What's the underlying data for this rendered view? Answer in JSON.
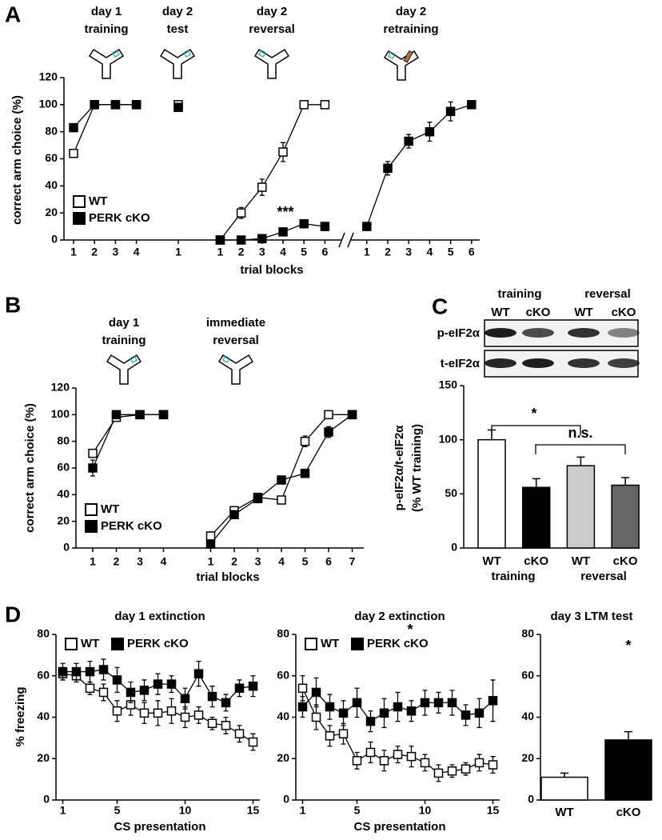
{
  "chart_data": [
    {
      "type": "line",
      "panel": "A",
      "group_labels": [
        [
          "day 1",
          "training"
        ],
        [
          "day 2",
          "test"
        ],
        [
          "day 2",
          "reversal"
        ],
        [
          "day 2",
          "retraining"
        ]
      ],
      "categories": [
        "1",
        "2",
        "3",
        "4",
        null,
        "1",
        null,
        "1",
        "2",
        "3",
        "4",
        "5",
        "6",
        null,
        "1",
        "2",
        "3",
        "4",
        "5",
        "6"
      ],
      "x_label": "trial blocks",
      "y_label": "correct arm choice (%)",
      "ylim": [
        0,
        120
      ],
      "yticks": [
        0,
        20,
        40,
        60,
        80,
        100,
        120
      ],
      "legend": "lower left",
      "series": [
        {
          "name": "WT",
          "color": "#ffffff",
          "values": [
            64,
            100,
            100,
            100,
            null,
            100,
            null,
            0,
            20,
            39,
            65,
            100,
            100,
            null,
            null,
            null,
            null,
            null,
            null,
            null
          ],
          "errors": [
            3,
            0,
            0,
            0,
            null,
            2,
            null,
            0,
            4,
            6,
            7,
            0,
            0,
            null,
            null,
            null,
            null,
            null,
            null,
            null
          ]
        },
        {
          "name": "PERK cKO",
          "color": "#000000",
          "values": [
            83,
            100,
            100,
            100,
            null,
            98,
            null,
            0,
            0,
            1,
            6,
            12,
            10,
            null,
            10,
            53,
            73,
            80,
            95,
            100
          ],
          "errors": [
            2,
            0,
            0,
            0,
            null,
            2,
            null,
            0,
            0,
            1,
            2,
            3,
            3,
            null,
            3,
            5,
            5,
            7,
            7,
            0
          ]
        }
      ],
      "annotations": [
        "***"
      ]
    },
    {
      "type": "line",
      "panel": "B",
      "group_labels": [
        [
          "day 1",
          "training"
        ],
        [
          "immediate",
          "reversal"
        ]
      ],
      "categories": [
        "1",
        "2",
        "3",
        "4",
        null,
        "1",
        "2",
        "3",
        "4",
        "5",
        "6",
        "7"
      ],
      "x_label": "trial blocks",
      "y_label": "correct arm choice (%)",
      "ylim": [
        0,
        120
      ],
      "yticks": [
        0,
        20,
        40,
        60,
        80,
        100,
        120
      ],
      "legend": "lower left",
      "series": [
        {
          "name": "WT",
          "color": "#ffffff",
          "values": [
            71,
            98,
            100,
            100,
            null,
            9,
            28,
            38,
            36,
            80,
            100,
            100
          ],
          "errors": [
            3,
            2,
            0,
            0,
            null,
            3,
            1,
            2,
            1,
            4,
            0,
            0
          ]
        },
        {
          "name": "PERK cKO",
          "color": "#000000",
          "values": [
            60,
            100,
            100,
            100,
            null,
            3,
            25,
            37,
            51,
            56,
            87,
            100
          ],
          "errors": [
            6,
            1,
            0,
            0,
            null,
            1,
            1,
            1,
            1,
            3,
            4,
            0
          ]
        }
      ]
    },
    {
      "type": "bar",
      "panel": "C",
      "blot": {
        "groups": [
          "training",
          "reversal"
        ],
        "lanes": [
          "WT",
          "cKO",
          "WT",
          "cKO"
        ],
        "rows": [
          "p-eIF2α",
          "t-eIF2α"
        ]
      },
      "categories": [
        "WT",
        "cKO",
        "WT",
        "cKO"
      ],
      "group_labels": [
        "training",
        "reversal"
      ],
      "values": [
        100,
        56,
        76,
        58
      ],
      "errors": [
        9,
        8,
        8,
        7
      ],
      "colors": [
        "#ffffff",
        "#000000",
        "#cccccc",
        "#666666"
      ],
      "y_label": [
        "p-eIF2α/t-eIF2α",
        "(% WT training)"
      ],
      "ylim": [
        0,
        150
      ],
      "yticks": [
        0,
        50,
        100,
        150
      ],
      "annotations": [
        "*",
        "n.s."
      ]
    },
    {
      "type": "line",
      "panel": "D",
      "title": "day 1 extinction",
      "x": [
        1,
        2,
        3,
        4,
        5,
        6,
        7,
        8,
        9,
        10,
        11,
        12,
        13,
        14,
        15
      ],
      "xlim": [
        0.5,
        15.5
      ],
      "xticks": [
        1,
        5,
        10,
        15
      ],
      "x_label": "CS presentation",
      "y_label": "% freezing",
      "ylim": [
        0,
        80
      ],
      "yticks": [
        0,
        20,
        40,
        60,
        80
      ],
      "legend": "upper left",
      "series": [
        {
          "name": "WT",
          "color": "#ffffff",
          "values": [
            61,
            60,
            54,
            52,
            43,
            46,
            42,
            42,
            43,
            40,
            41,
            37,
            36,
            32,
            28
          ],
          "errors": [
            3,
            3,
            3,
            4,
            5,
            5,
            5,
            6,
            6,
            5,
            4,
            3,
            4,
            4,
            4
          ]
        },
        {
          "name": "PERK cKO",
          "color": "#000000",
          "values": [
            62,
            62,
            62,
            63,
            58,
            52,
            53,
            56,
            56,
            49,
            61,
            50,
            47,
            54,
            55
          ],
          "errors": [
            4,
            4,
            5,
            5,
            6,
            5,
            5,
            5,
            4,
            5,
            6,
            5,
            4,
            4,
            5
          ]
        }
      ]
    },
    {
      "type": "line",
      "title": "day 2 extinction",
      "x": [
        1,
        2,
        3,
        4,
        5,
        6,
        7,
        8,
        9,
        10,
        11,
        12,
        13,
        14,
        15
      ],
      "xlim": [
        0.5,
        15.5
      ],
      "xticks": [
        1,
        5,
        10,
        15
      ],
      "x_label": "CS presentation",
      "ylim": [
        0,
        80
      ],
      "yticks": [
        0,
        20,
        40,
        60,
        80
      ],
      "legend": "upper left",
      "series": [
        {
          "name": "WT",
          "color": "#ffffff",
          "values": [
            54,
            40,
            31,
            32,
            19,
            23,
            19,
            22,
            21,
            18,
            13,
            14,
            15,
            18,
            17
          ],
          "errors": [
            6,
            6,
            5,
            5,
            4,
            5,
            5,
            4,
            5,
            4,
            4,
            3,
            3,
            4,
            4
          ]
        },
        {
          "name": "PERK cKO",
          "color": "#000000",
          "values": [
            45,
            52,
            45,
            42,
            47,
            38,
            42,
            45,
            43,
            47,
            47,
            47,
            41,
            42,
            48
          ],
          "errors": [
            5,
            7,
            6,
            6,
            7,
            5,
            7,
            7,
            5,
            6,
            5,
            6,
            5,
            7,
            10
          ]
        }
      ],
      "annotations": [
        "*"
      ]
    },
    {
      "type": "bar",
      "title": "day 3 LTM test",
      "categories": [
        "WT",
        "cKO"
      ],
      "values": [
        11,
        29
      ],
      "errors": [
        2,
        4
      ],
      "colors": [
        "#ffffff",
        "#000000"
      ],
      "ylim": [
        0,
        80
      ],
      "yticks": [
        0,
        20,
        40,
        60,
        80
      ],
      "annotations": [
        "*"
      ]
    }
  ]
}
